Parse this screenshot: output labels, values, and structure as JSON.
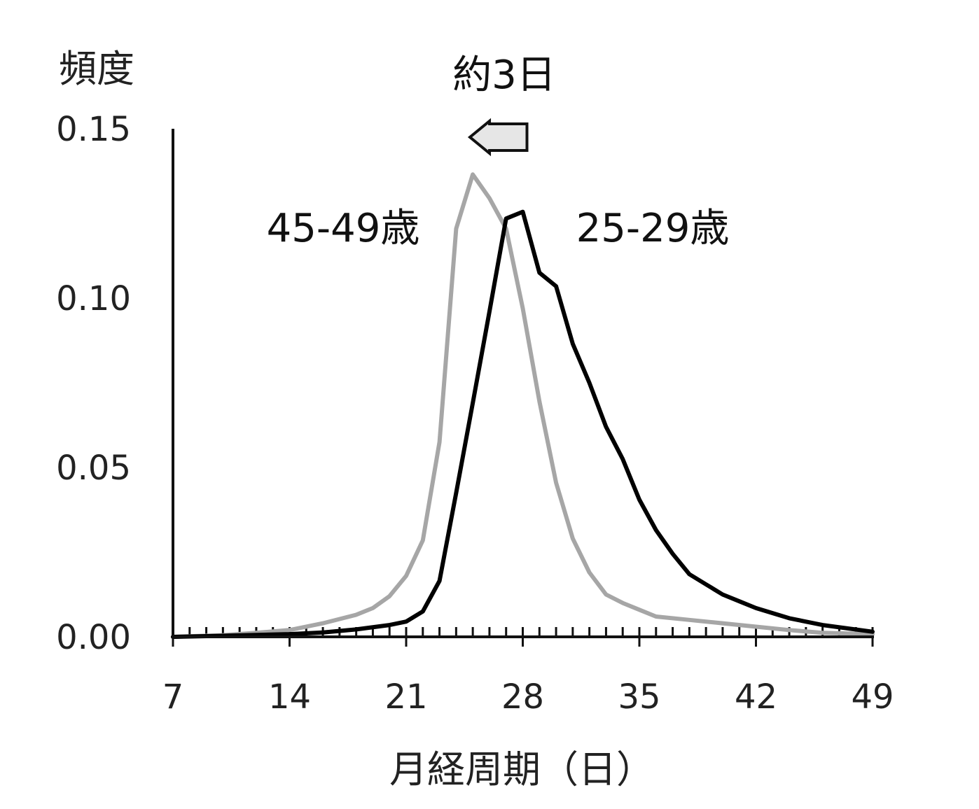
{
  "chart_data": {
    "type": "line",
    "title": "",
    "xlabel": "月経周期（日）",
    "ylabel": "頻度",
    "xlim": [
      7,
      49
    ],
    "ylim": [
      0,
      0.15
    ],
    "xticks": [
      7,
      14,
      21,
      28,
      35,
      42,
      49
    ],
    "xtick_labels": [
      "7",
      "14",
      "21",
      "28",
      "35",
      "42",
      "49"
    ],
    "yticks": [
      0,
      0.05,
      0.1,
      0.15
    ],
    "ytick_labels": [
      "0.00",
      "0.05",
      "0.10",
      "0.15"
    ],
    "minor_tick_step": 1,
    "grid": false,
    "legend": "none",
    "series": [
      {
        "name": "45-49歳",
        "color": "#a6a6a6",
        "x": [
          7,
          10,
          12,
          14,
          16,
          18,
          19,
          20,
          21,
          22,
          23,
          24,
          25,
          26,
          27,
          28,
          29,
          30,
          31,
          32,
          33,
          34,
          35,
          36,
          38,
          40,
          42,
          44,
          46,
          49
        ],
        "y": [
          0.0,
          0.0005,
          0.0012,
          0.002,
          0.004,
          0.0065,
          0.0085,
          0.012,
          0.018,
          0.0285,
          0.0575,
          0.1205,
          0.1365,
          0.1295,
          0.1205,
          0.097,
          0.0695,
          0.0455,
          0.029,
          0.019,
          0.0125,
          0.01,
          0.008,
          0.006,
          0.005,
          0.004,
          0.003,
          0.002,
          0.0012,
          0.0008
        ]
      },
      {
        "name": "25-29歳",
        "color": "#000000",
        "x": [
          7,
          10,
          14,
          16,
          18,
          20,
          21,
          22,
          23,
          24,
          25,
          26,
          27,
          28,
          29,
          30,
          31,
          32,
          33,
          34,
          35,
          36,
          37,
          38,
          39,
          40,
          41,
          42,
          44,
          46,
          49
        ],
        "y": [
          0.0,
          0.0003,
          0.0008,
          0.0013,
          0.0022,
          0.0035,
          0.0045,
          0.0075,
          0.0165,
          0.0425,
          0.069,
          0.096,
          0.1235,
          0.1255,
          0.1075,
          0.1035,
          0.0865,
          0.075,
          0.062,
          0.0525,
          0.0405,
          0.0315,
          0.0245,
          0.0185,
          0.0155,
          0.0125,
          0.0105,
          0.0085,
          0.0055,
          0.0035,
          0.0015
        ]
      }
    ],
    "annotations": [
      {
        "text": "約3日",
        "arrow": "left",
        "from_x": 28,
        "to_x": 25.5,
        "arrow_fill": "#e6e6e6"
      },
      {
        "text": "45-49歳",
        "series": "45-49歳"
      },
      {
        "text": "25-29歳",
        "series": "25-29歳"
      }
    ]
  }
}
